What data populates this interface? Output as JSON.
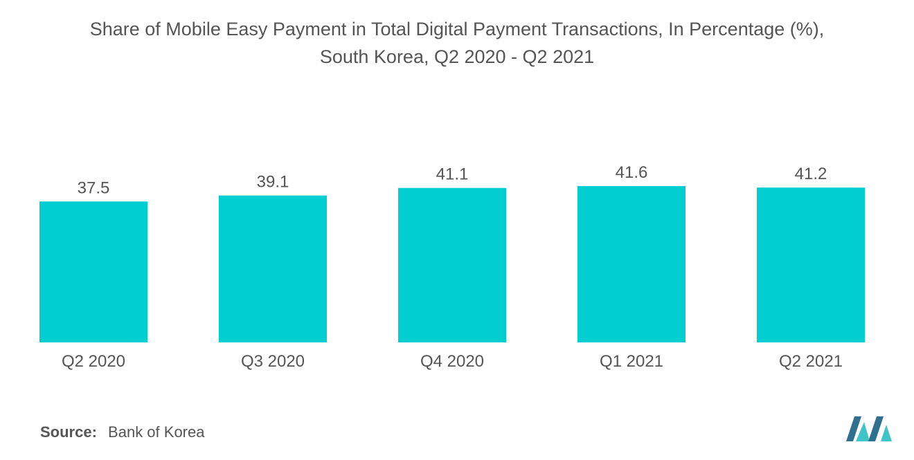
{
  "title_line1": "Share of Mobile Easy Payment in Total Digital Payment Transactions, In Percentage (%),",
  "title_line2": "South Korea, Q2 2020 - Q2 2021",
  "source_label": "Source:",
  "source_value": "Bank of Korea",
  "colors": {
    "bar": "#00CED1",
    "text": "#555555",
    "logo_dark": "#2F6F8F",
    "logo_light": "#3FC4C8"
  },
  "chart_data": {
    "type": "bar",
    "categories": [
      "Q2 2020",
      "Q3 2020",
      "Q4 2020",
      "Q1 2021",
      "Q2 2021"
    ],
    "values": [
      37.5,
      39.1,
      41.1,
      41.6,
      41.2
    ],
    "data_labels": [
      "37.5",
      "39.1",
      "41.1",
      "41.6",
      "41.2"
    ],
    "title": "Share of Mobile Easy Payment in Total Digital Payment Transactions, In Percentage (%), South Korea, Q2 2020 - Q2 2021",
    "xlabel": "",
    "ylabel": "",
    "ylim": [
      0,
      41.6
    ],
    "grid": false,
    "legend": "none"
  }
}
